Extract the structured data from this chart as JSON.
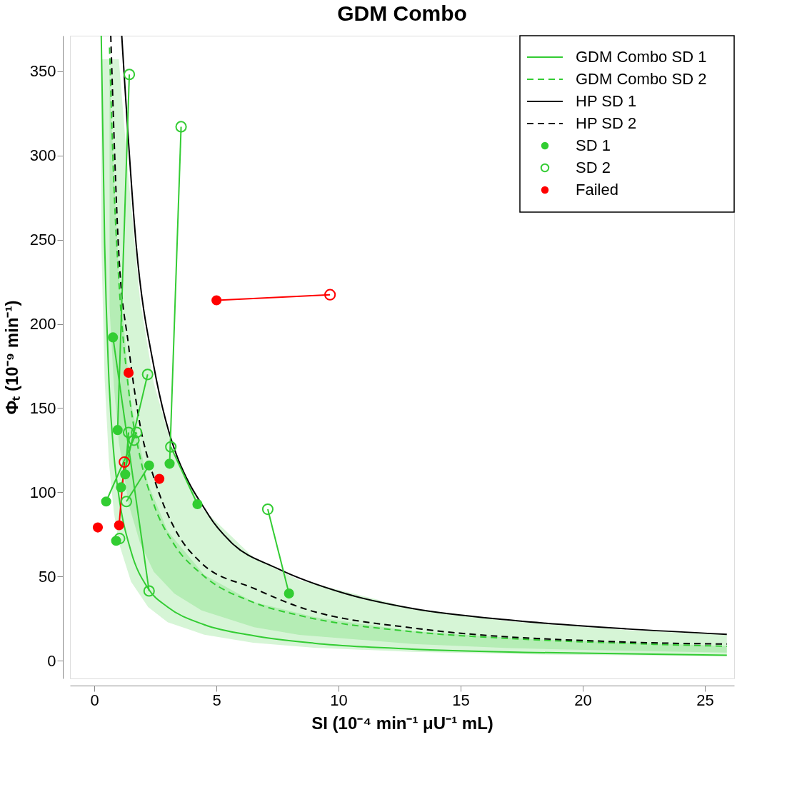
{
  "chart_data": {
    "type": "line",
    "title": "GDM Combo",
    "xlabel": "SI (10⁻⁴ min⁻¹ μU⁻¹ mL)",
    "ylabel": "Φₜ (10⁻⁹ min⁻¹)",
    "xlim": [
      -1,
      26.2
    ],
    "ylim": [
      -10.4,
      371
    ],
    "xticks": [
      0,
      5,
      10,
      15,
      20,
      25
    ],
    "yticks": [
      0,
      50,
      100,
      150,
      200,
      250,
      300,
      350
    ],
    "grid": false,
    "legend": "top right",
    "series": [
      {
        "name": "GDM Combo SD 1",
        "color": "#33cc33",
        "line_style": "solid",
        "x": [
          0.28,
          0.42,
          0.6,
          0.8,
          1,
          1.5,
          2.2,
          3,
          4.5,
          6.5,
          9,
          13,
          18,
          25.9
        ],
        "values": [
          371,
          247,
          165,
          122,
          98,
          65,
          43,
          32,
          21.5,
          15,
          10.5,
          7,
          5,
          3.4
        ],
        "lower": [
          250,
          167,
          117,
          88,
          70,
          47,
          32,
          23,
          15.6,
          10.8,
          7.8,
          5.4,
          3.9,
          2.7
        ],
        "upper": [
          357,
          357,
          357,
          288,
          230,
          153,
          105,
          77,
          51,
          35,
          26,
          17.7,
          12.8,
          8.9
        ]
      },
      {
        "name": "GDM Combo SD 2",
        "color": "#33cc33",
        "line_style": "dashed",
        "x": [
          0.62,
          0.8,
          1,
          1.4,
          1.87,
          2.43,
          3.27,
          4.39,
          6.54,
          8.39,
          13.06,
          17,
          21.8,
          25.9
        ],
        "values": [
          364,
          282,
          226,
          161,
          121,
          93,
          69,
          51.5,
          34.6,
          27,
          17.3,
          13.3,
          10.4,
          8.7
        ],
        "lower": [
          210,
          163,
          130,
          93,
          70,
          53,
          40,
          30,
          20,
          15.5,
          10,
          7.6,
          6,
          5
        ],
        "upper": [
          357,
          357,
          357,
          286,
          214,
          165,
          122,
          91,
          61,
          48,
          31,
          23.5,
          18.3,
          15.4
        ]
      },
      {
        "name": "HP SD 1",
        "color": "#000000",
        "line_style": "solid",
        "x": [
          1.12,
          1.71,
          2.43,
          4.7,
          5.59,
          7.47,
          10.26,
          13.06,
          17.17,
          21.8,
          25.9
        ],
        "values": [
          371,
          247,
          175,
          86,
          70.5,
          55,
          40,
          31,
          24,
          19,
          15.8
        ]
      },
      {
        "name": "HP SD 2",
        "color": "#000000",
        "line_style": "dashed",
        "x": [
          0.67,
          0.98,
          1.4,
          1.87,
          2.43,
          3.27,
          4.39,
          6.54,
          8.39,
          13.06,
          21.8,
          25.9
        ],
        "values": [
          371,
          247,
          187,
          140,
          109,
          79,
          58,
          43,
          32,
          19.5,
          11.2,
          10
        ]
      },
      {
        "color": "#33cc33",
        "x": [
          0.95,
          1.43
        ],
        "values": [
          137,
          348
        ]
      },
      {
        "color": "#33cc33",
        "x": [
          3.08,
          3.55
        ],
        "values": [
          117,
          317
        ]
      },
      {
        "color": "#33cc33",
        "x": [
          1.09,
          2.18
        ],
        "values": [
          103,
          170
        ]
      },
      {
        "color": "#33cc33",
        "x": [
          2.24,
          1.31
        ],
        "values": [
          116,
          94.6
        ]
      },
      {
        "color": "#33cc33",
        "x": [
          4.22,
          3.13
        ],
        "values": [
          93,
          127
        ]
      },
      {
        "color": "#33cc33",
        "x": [
          7.97,
          7.1
        ],
        "values": [
          40,
          90
        ]
      },
      {
        "color": "#33cc33",
        "x": [
          0.76,
          2.24
        ],
        "values": [
          192,
          41.5
        ]
      },
      {
        "color": "#33cc33",
        "x": [
          0.48,
          1.73
        ],
        "values": [
          94.6,
          135.6
        ]
      },
      {
        "color": "#33cc33",
        "x": [
          1.26,
          1.4
        ],
        "values": [
          110.7,
          135.6
        ]
      },
      {
        "color": "#ff0000",
        "x": [
          1.01,
          1.23
        ],
        "values": [
          80.5,
          118
        ]
      },
      {
        "color": "#ff0000",
        "x": [
          5.0,
          9.65
        ],
        "values": [
          214,
          217.3
        ]
      },
      {
        "name": "SD 1",
        "type": "scatter",
        "marker": "circle",
        "color": "#32cd32",
        "x": [
          0.76,
          0.95,
          0.48,
          0.89,
          1.26,
          1.09,
          2.24,
          3.08,
          4.22,
          7.97
        ],
        "values": [
          192,
          137,
          94.6,
          71.3,
          110.7,
          103,
          116,
          117,
          93,
          40
        ]
      },
      {
        "name": "SD 2",
        "type": "scatter",
        "marker": "circle",
        "line_style": "solid",
        "color": "#33cc33",
        "x": [
          1.43,
          3.55,
          2.18,
          1.4,
          1.73,
          1.62,
          3.13,
          1.31,
          1.03,
          2.24,
          7.1
        ],
        "values": [
          348,
          317,
          170,
          135.6,
          135.6,
          131,
          127,
          94.6,
          72.6,
          41.5,
          90
        ]
      },
      {
        "name": "Failed",
        "type": "scatter",
        "marker": "circle",
        "color": "#ff0000",
        "x": [
          0.14,
          1.01,
          1.4,
          2.66,
          5.0
        ],
        "values": [
          79.2,
          80.5,
          171,
          108,
          214
        ]
      },
      {
        "type": "scatter",
        "marker": "circle",
        "line_style": "solid",
        "color": "#ff0000",
        "x": [
          1.23,
          9.65
        ],
        "values": [
          118,
          217.3
        ]
      }
    ]
  }
}
